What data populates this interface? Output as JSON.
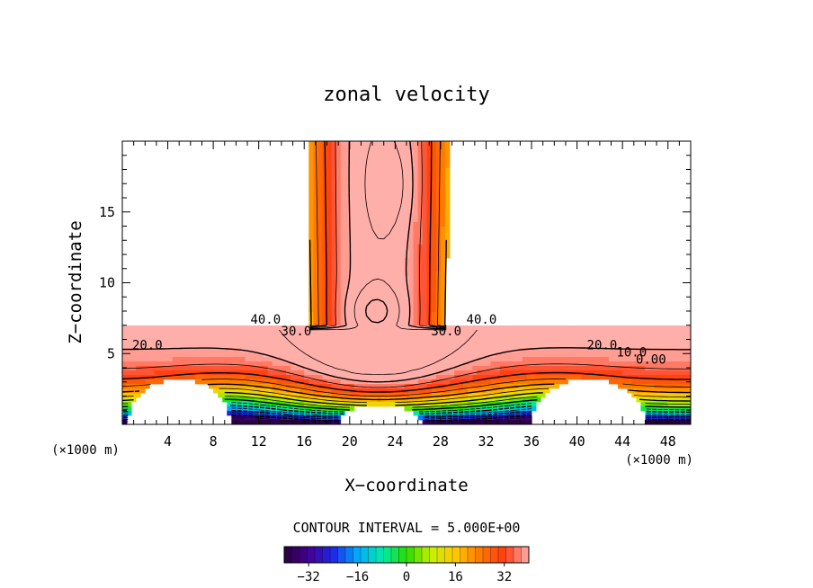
{
  "chart_data": {
    "type": "contour",
    "title": "zonal velocity",
    "xlabel": "X−coordinate",
    "ylabel": "Z−coordinate",
    "x_unit_label": "(×1000 m)",
    "z_unit_label": "(×1000 m)",
    "xlim": [
      0,
      50
    ],
    "ylim": [
      0,
      20
    ],
    "x_ticks": [
      4,
      8,
      12,
      16,
      20,
      24,
      28,
      32,
      36,
      40,
      44,
      48
    ],
    "y_ticks": [
      5,
      10,
      15
    ],
    "contour_interval_text": "CONTOUR INTERVAL = 5.000E+00",
    "contour_interval": 5,
    "contour_labels": [
      {
        "text": "40.0",
        "x": 12.6,
        "z": 7.1
      },
      {
        "text": "30.0",
        "x": 15.3,
        "z": 6.3
      },
      {
        "text": "20.0",
        "x": 2.2,
        "z": 5.3
      },
      {
        "text": "30.0",
        "x": 28.5,
        "z": 6.3
      },
      {
        "text": "40.0",
        "x": 31.6,
        "z": 7.1
      },
      {
        "text": "20.0",
        "x": 42.2,
        "z": 5.3
      },
      {
        "text": "10.0",
        "x": 44.8,
        "z": 4.8
      },
      {
        "text": "0.00",
        "x": 46.5,
        "z": 4.3
      }
    ],
    "colorbar": {
      "min": -40,
      "max": 40,
      "tick_labels": [
        "−32",
        "−16",
        "0",
        "16",
        "32"
      ],
      "tick_values": [
        -32,
        -16,
        0,
        16,
        32
      ]
    }
  }
}
